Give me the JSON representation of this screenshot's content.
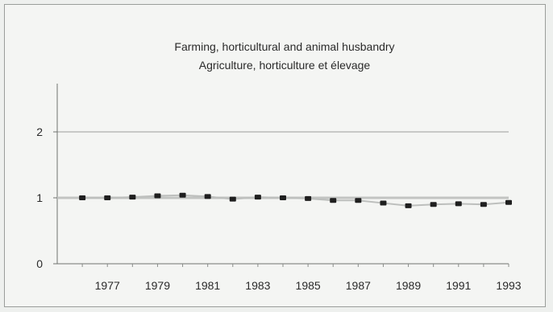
{
  "chart_data": {
    "type": "line",
    "title": "Farming, horticultural and animal husbandry",
    "subtitle": "Agriculture, horticulture et élevage",
    "xlabel": "",
    "ylabel": "",
    "ylim": [
      0,
      2
    ],
    "yticks": [
      0,
      1,
      2
    ],
    "xlim": [
      1975,
      1993
    ],
    "xticks": [
      1977,
      1979,
      1981,
      1983,
      1985,
      1987,
      1989,
      1991,
      1993
    ],
    "grid": true,
    "legend": "none",
    "series": [
      {
        "x": [
          1976,
          1977,
          1978,
          1979,
          1980,
          1981,
          1982,
          1983,
          1984,
          1985,
          1986,
          1987,
          1988,
          1989,
          1990,
          1991,
          1992,
          1993
        ],
        "values": [
          1.0,
          1.0,
          1.01,
          1.03,
          1.04,
          1.02,
          0.98,
          1.01,
          1.0,
          0.99,
          0.96,
          0.96,
          0.92,
          0.88,
          0.9,
          0.91,
          0.9,
          0.93
        ],
        "color": "#1f1f1f"
      }
    ],
    "reference_line": {
      "y": 1,
      "color": "#c2c4c2"
    }
  }
}
